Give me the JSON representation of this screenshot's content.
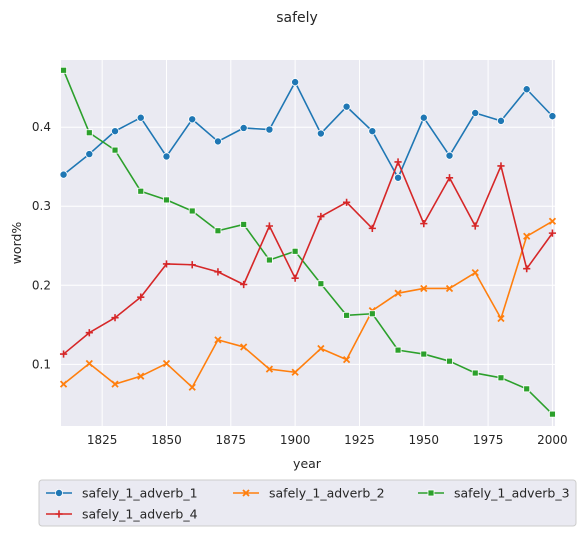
{
  "chart_data": {
    "type": "line",
    "title": "safely",
    "xlabel": "year",
    "ylabel": "word%",
    "xlim": [
      1809,
      2001
    ],
    "ylim": [
      0.022,
      0.485
    ],
    "xticks": [
      1825,
      1850,
      1875,
      1900,
      1925,
      1950,
      1975,
      2000
    ],
    "yticks": [
      0.1,
      0.2,
      0.3,
      0.4
    ],
    "grid": true,
    "legend_position": "bottom",
    "x": [
      1810,
      1820,
      1830,
      1840,
      1850,
      1860,
      1870,
      1880,
      1890,
      1900,
      1910,
      1920,
      1930,
      1940,
      1950,
      1960,
      1970,
      1980,
      1990,
      2000
    ],
    "series": [
      {
        "name": "safely_1_adverb_1",
        "color": "#1f77b4",
        "marker": "circle",
        "values": [
          0.34,
          0.366,
          0.395,
          0.412,
          0.363,
          0.41,
          0.382,
          0.399,
          0.397,
          0.457,
          0.392,
          0.426,
          0.395,
          0.336,
          0.412,
          0.364,
          0.418,
          0.408,
          0.448,
          0.414
        ]
      },
      {
        "name": "safely_1_adverb_2",
        "color": "#ff7f0e",
        "marker": "x",
        "values": [
          0.075,
          0.101,
          0.075,
          0.085,
          0.101,
          0.071,
          0.131,
          0.122,
          0.094,
          0.09,
          0.12,
          0.106,
          0.168,
          0.19,
          0.196,
          0.196,
          0.216,
          0.158,
          0.262,
          0.281
        ]
      },
      {
        "name": "safely_1_adverb_3",
        "color": "#2ca02c",
        "marker": "square",
        "values": [
          0.472,
          0.393,
          0.371,
          0.319,
          0.308,
          0.294,
          0.269,
          0.277,
          0.232,
          0.243,
          0.202,
          0.162,
          0.164,
          0.118,
          0.113,
          0.104,
          0.089,
          0.083,
          0.069,
          0.037
        ]
      },
      {
        "name": "safely_1_adverb_4",
        "color": "#d62728",
        "marker": "plus",
        "values": [
          0.113,
          0.14,
          0.159,
          0.185,
          0.227,
          0.226,
          0.217,
          0.201,
          0.275,
          0.209,
          0.287,
          0.305,
          0.272,
          0.356,
          0.278,
          0.336,
          0.275,
          0.351,
          0.221,
          0.266
        ]
      }
    ]
  }
}
